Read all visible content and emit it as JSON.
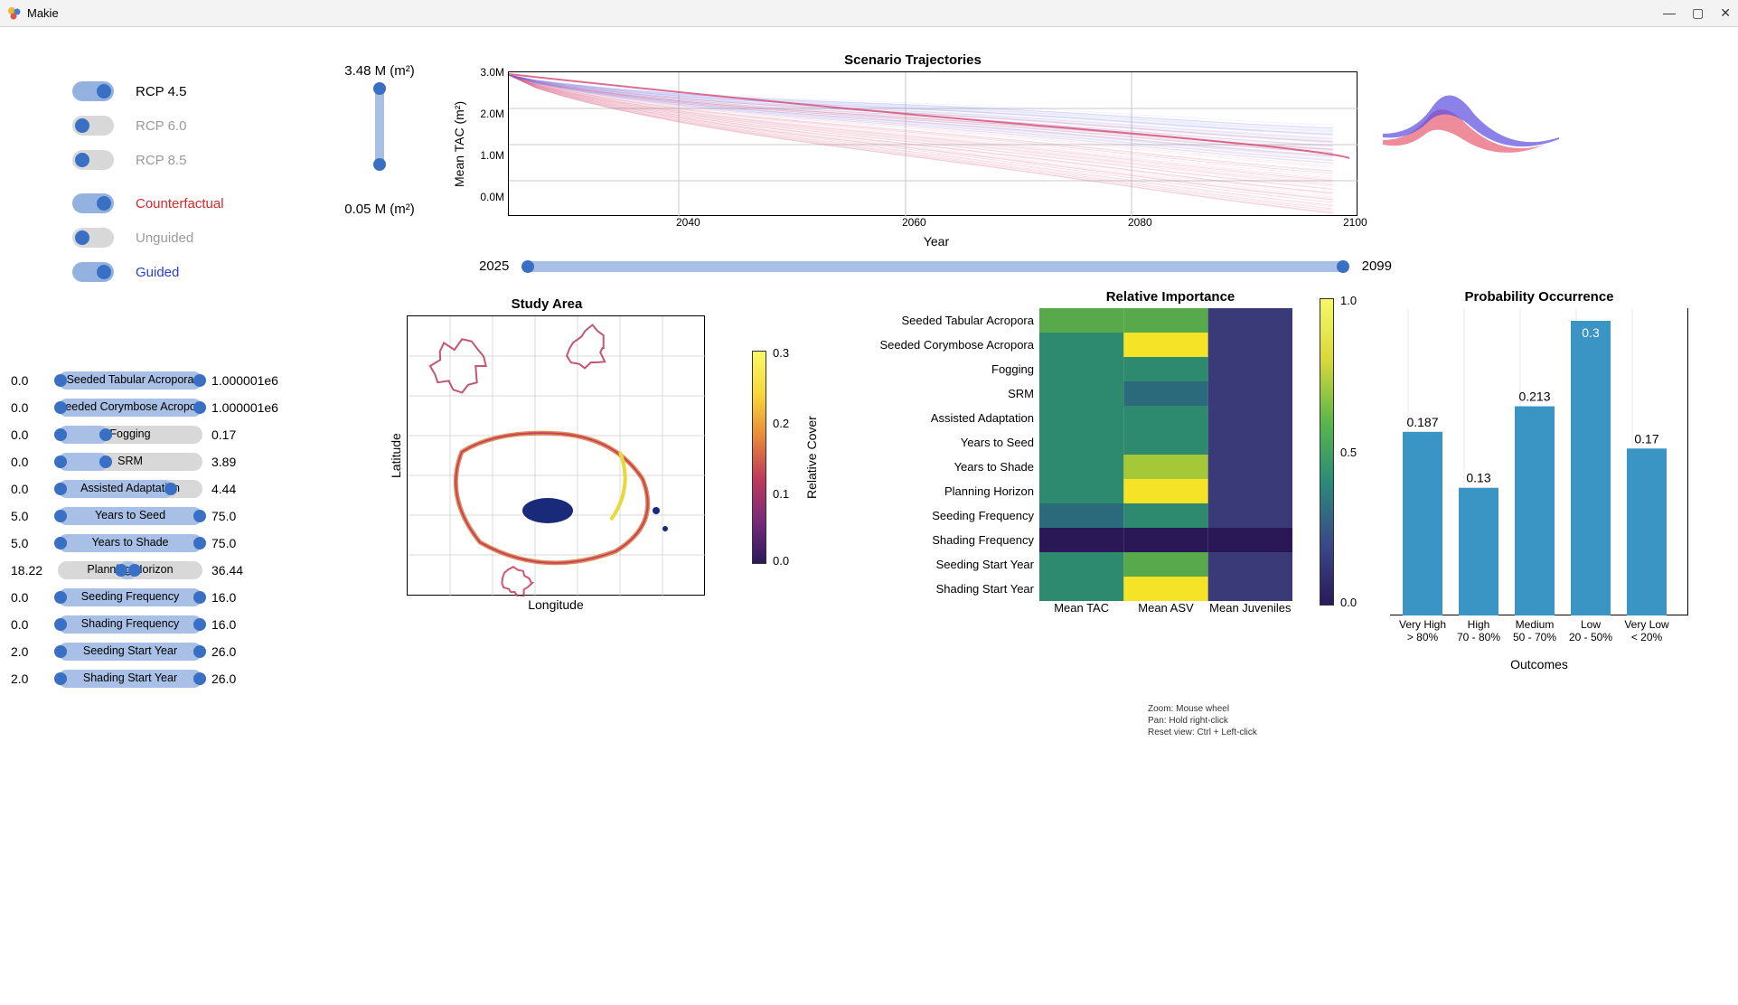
{
  "window": {
    "title": "Makie"
  },
  "toggles": [
    {
      "label": "RCP 4.5",
      "on": true,
      "cls": "lbl-active-black"
    },
    {
      "label": "RCP 6.0",
      "on": false,
      "cls": "lbl-inactive"
    },
    {
      "label": "RCP 8.5",
      "on": false,
      "cls": "lbl-inactive"
    },
    {
      "label": "Counterfactual",
      "on": true,
      "cls": "lbl-red"
    },
    {
      "label": "Unguided",
      "on": false,
      "cls": "lbl-inactive"
    },
    {
      "label": "Guided",
      "on": true,
      "cls": "lbl-blue"
    }
  ],
  "vslider": {
    "top_label": "3.48 M (m²)",
    "bottom_label": "0.05 M (m²)"
  },
  "param_sliders": [
    {
      "min": "0.0",
      "label": "Seeded Tabular Acropora",
      "max": "1.000001e6",
      "fill_lo": 0,
      "fill_hi": 100
    },
    {
      "min": "0.0",
      "label": "Seeded Corymbose Acropora",
      "max": "1.000001e6",
      "fill_lo": 0,
      "fill_hi": 100
    },
    {
      "min": "0.0",
      "label": "Fogging",
      "max": "0.17",
      "fill_lo": 0,
      "fill_hi": 35
    },
    {
      "min": "0.0",
      "label": "SRM",
      "max": "3.89",
      "fill_lo": 0,
      "fill_hi": 35
    },
    {
      "min": "0.0",
      "label": "Assisted Adaptation",
      "max": "4.44",
      "fill_lo": 0,
      "fill_hi": 80
    },
    {
      "min": "5.0",
      "label": "Years to Seed",
      "max": "75.0",
      "fill_lo": 0,
      "fill_hi": 100
    },
    {
      "min": "5.0",
      "label": "Years to Shade",
      "max": "75.0",
      "fill_lo": 0,
      "fill_hi": 100
    },
    {
      "min": "18.22",
      "label": "Planning Horizon",
      "max": "36.44",
      "fill_lo": 42,
      "fill_hi": 55
    },
    {
      "min": "0.0",
      "label": "Seeding Frequency",
      "max": "16.0",
      "fill_lo": 0,
      "fill_hi": 100
    },
    {
      "min": "0.0",
      "label": "Shading Frequency",
      "max": "16.0",
      "fill_lo": 0,
      "fill_hi": 100
    },
    {
      "min": "2.0",
      "label": "Seeding Start Year",
      "max": "26.0",
      "fill_lo": 0,
      "fill_hi": 100
    },
    {
      "min": "2.0",
      "label": "Shading Start Year",
      "max": "26.0",
      "fill_lo": 0,
      "fill_hi": 100
    }
  ],
  "traj_chart": {
    "title": "Scenario Trajectories",
    "ylabel": "Mean TAC (m²)",
    "xlabel": "Year",
    "xlim": [
      2025,
      2100
    ],
    "ylim": [
      0,
      3500000
    ],
    "yticks": [
      "0.0M",
      "1.0M",
      "2.0M",
      "3.0M"
    ],
    "xticks": [
      "2040",
      "2060",
      "2080",
      "2100"
    ],
    "grid_color": "#c8c8c8",
    "colors": {
      "cf": "#d64a75",
      "unguided": "#e88aa8",
      "guided": "#6a6af0"
    }
  },
  "time_slider": {
    "min": "2025",
    "max": "2099"
  },
  "study_area": {
    "title": "Study Area",
    "xlabel": "Longitude",
    "ylabel": "Latitude",
    "cb_label": "Relative Cover",
    "cb_ticks": [
      "0.0",
      "0.1",
      "0.2",
      "0.3"
    ]
  },
  "heatmap": {
    "title": "Relative Importance",
    "rows": [
      "Seeded Tabular Acropora",
      "Seeded Corymbose Acropora",
      "Fogging",
      "SRM",
      "Assisted Adaptation",
      "Years to Seed",
      "Years to Shade",
      "Planning Horizon",
      "Seeding Frequency",
      "Shading Frequency",
      "Seeding Start Year",
      "Shading Start Year"
    ],
    "cols": [
      "Mean TAC",
      "Mean ASV",
      "Mean Juveniles"
    ],
    "cb_ticks": [
      "0.0",
      "0.5",
      "1.0"
    ],
    "values": [
      [
        0.45,
        0.55,
        0.05
      ],
      [
        0.42,
        0.8,
        0.05
      ],
      [
        0.38,
        0.3,
        0.05
      ],
      [
        0.4,
        0.25,
        0.05
      ],
      [
        0.4,
        0.4,
        0.05
      ],
      [
        0.4,
        0.35,
        0.05
      ],
      [
        0.4,
        0.6,
        0.05
      ],
      [
        0.42,
        0.95,
        0.05
      ],
      [
        0.28,
        0.4,
        0.05
      ],
      [
        0.02,
        0.02,
        0.02
      ],
      [
        0.42,
        0.55,
        0.05
      ],
      [
        0.42,
        0.95,
        0.05
      ]
    ]
  },
  "prob_chart": {
    "title": "Probability Occurrence",
    "xlabel": "Outcomes",
    "categories": [
      "Very High",
      "High",
      "Medium",
      "Low",
      "Very Low"
    ],
    "sub": [
      "> 80%",
      "70 - 80%",
      "50 - 70%",
      "20 - 50%",
      "< 20%"
    ],
    "values": [
      0.187,
      0.13,
      0.213,
      0.3,
      0.17
    ],
    "bar_color": "#3a94c4",
    "ymax": 0.3
  },
  "help": {
    "l1": "Zoom: Mouse wheel",
    "l2": "Pan: Hold right-click",
    "l3": "Reset view: Ctrl + Left-click"
  },
  "density_colors": {
    "cf": "#e8667a",
    "guided": "#5a4be0"
  }
}
